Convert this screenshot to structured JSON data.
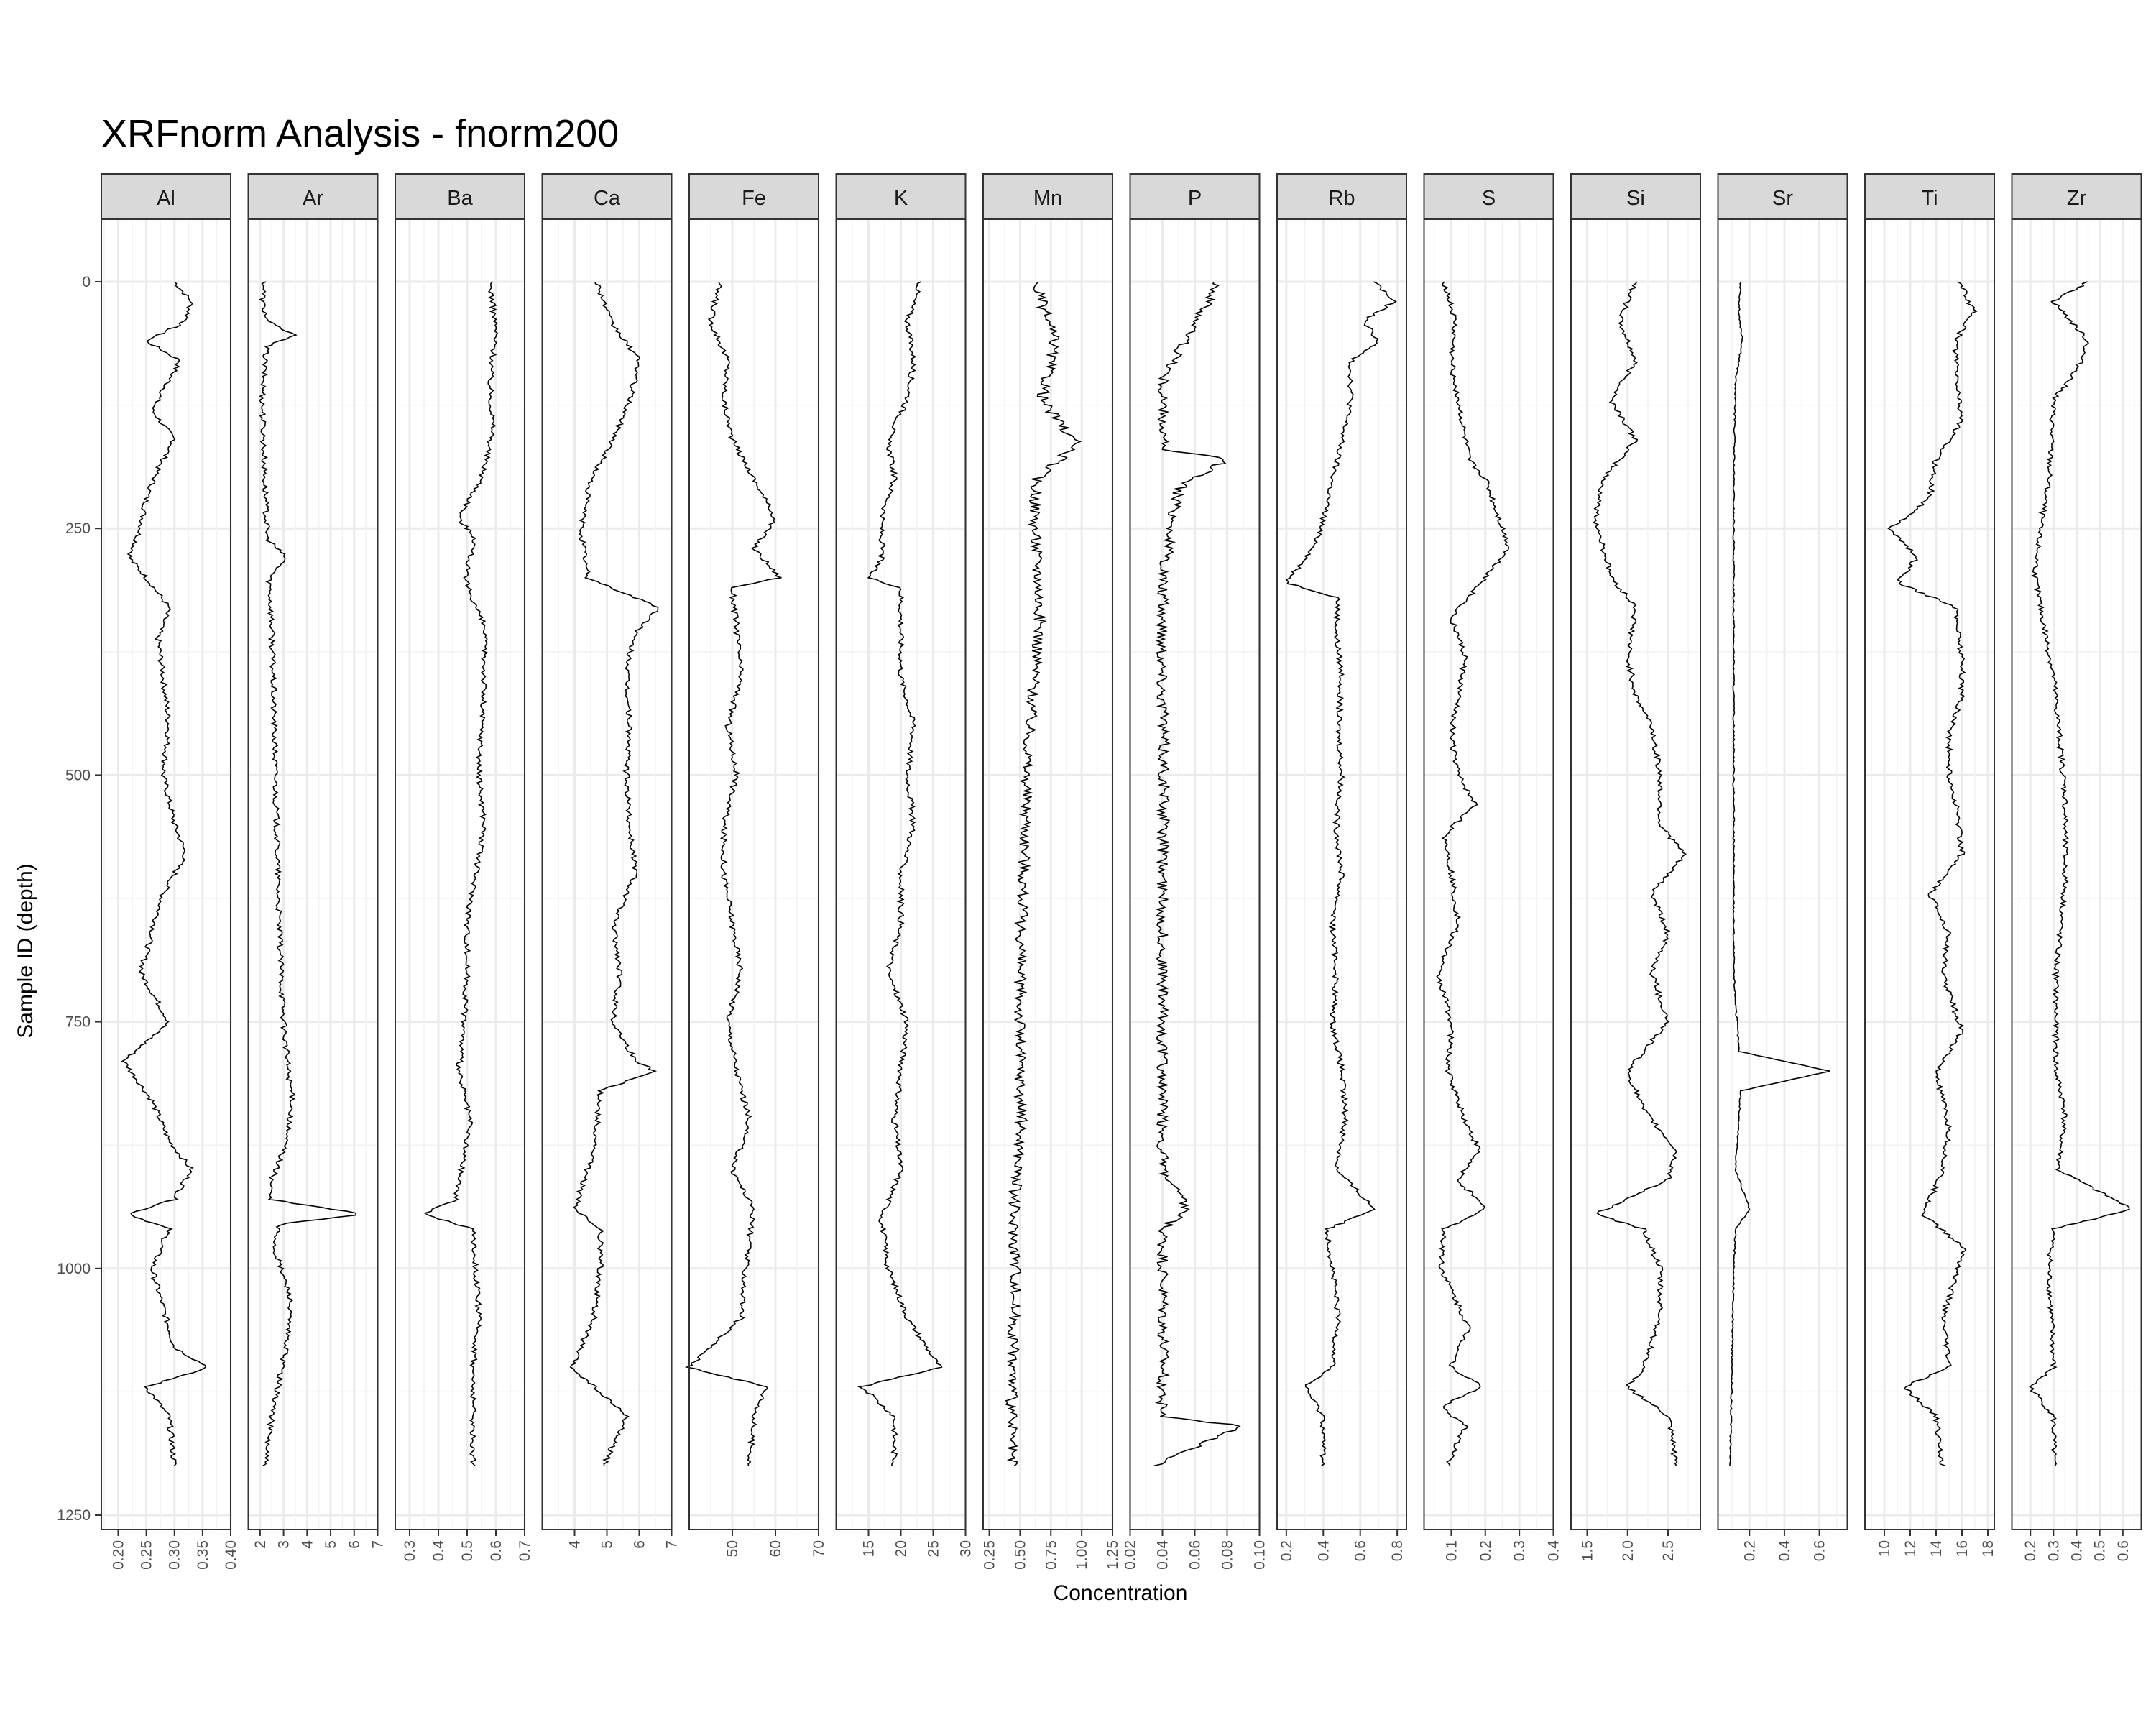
{
  "chart_data": {
    "type": "line",
    "title": "XRFnorm Analysis - fnorm200",
    "xlabel": "Concentration",
    "ylabel": "Sample ID (depth)",
    "y_reversed": true,
    "ylim": [
      1250,
      0
    ],
    "yticks": [
      0,
      250,
      500,
      750,
      1000,
      1250
    ],
    "ytick_labels": [
      "0",
      "250",
      "500",
      "750",
      "1000",
      "1250"
    ],
    "grid": true,
    "theme": "bw",
    "line_color": "#000000",
    "strip_fill": "#d9d9d9",
    "panels": [
      {
        "name": "Al",
        "xlim": [
          0.17,
          0.4
        ],
        "ticks": [
          0.2,
          0.25,
          0.3,
          0.35,
          0.4
        ],
        "tick_labels": [
          "0.20",
          "0.25",
          "0.30",
          "0.35",
          "0.40"
        ],
        "series": {
          "depth": [
            0,
            20,
            40,
            60,
            80,
            100,
            130,
            160,
            190,
            220,
            250,
            280,
            300,
            330,
            360,
            400,
            450,
            500,
            550,
            580,
            620,
            660,
            700,
            750,
            790,
            830,
            870,
            900,
            930,
            945,
            960,
            1000,
            1040,
            1080,
            1100,
            1120,
            1150,
            1200
          ],
          "values": [
            0.3,
            0.33,
            0.32,
            0.25,
            0.31,
            0.29,
            0.26,
            0.3,
            0.27,
            0.25,
            0.24,
            0.22,
            0.25,
            0.29,
            0.27,
            0.28,
            0.29,
            0.28,
            0.3,
            0.32,
            0.28,
            0.26,
            0.24,
            0.29,
            0.21,
            0.26,
            0.29,
            0.33,
            0.3,
            0.22,
            0.29,
            0.26,
            0.28,
            0.3,
            0.36,
            0.25,
            0.29,
            0.3
          ]
        }
      },
      {
        "name": "Ar",
        "xlim": [
          1.5,
          7.0
        ],
        "ticks": [
          2,
          3,
          4,
          5,
          6,
          7
        ],
        "tick_labels": [
          "2",
          "3",
          "4",
          "5",
          "6",
          "7"
        ],
        "series": {
          "depth": [
            0,
            20,
            40,
            55,
            65,
            80,
            120,
            200,
            260,
            280,
            300,
            350,
            450,
            550,
            650,
            750,
            800,
            830,
            880,
            910,
            930,
            945,
            955,
            980,
            1030,
            1080,
            1150,
            1200
          ],
          "values": [
            2.2,
            2.1,
            2.3,
            3.5,
            2.3,
            2.2,
            2.1,
            2.2,
            2.3,
            3.1,
            2.4,
            2.5,
            2.6,
            2.7,
            2.8,
            3.0,
            3.2,
            3.4,
            3.0,
            2.5,
            2.4,
            6.4,
            2.8,
            2.6,
            3.3,
            3.1,
            2.5,
            2.2
          ]
        }
      },
      {
        "name": "Ba",
        "xlim": [
          0.25,
          0.7
        ],
        "ticks": [
          0.3,
          0.4,
          0.5,
          0.6,
          0.7
        ],
        "tick_labels": [
          "0.3",
          "0.4",
          "0.5",
          "0.6",
          "0.7"
        ],
        "series": {
          "depth": [
            0,
            50,
            100,
            150,
            200,
            240,
            260,
            300,
            350,
            400,
            450,
            500,
            550,
            600,
            650,
            700,
            750,
            800,
            850,
            900,
            930,
            945,
            960,
            1000,
            1050,
            1100,
            1150,
            1200
          ],
          "values": [
            0.58,
            0.6,
            0.58,
            0.59,
            0.55,
            0.47,
            0.53,
            0.49,
            0.56,
            0.56,
            0.55,
            0.54,
            0.56,
            0.53,
            0.5,
            0.5,
            0.49,
            0.47,
            0.51,
            0.48,
            0.46,
            0.35,
            0.52,
            0.53,
            0.54,
            0.52,
            0.52,
            0.52
          ]
        }
      },
      {
        "name": "Ca",
        "xlim": [
          3.0,
          7.0
        ],
        "ticks": [
          4,
          5,
          6,
          7
        ],
        "tick_labels": [
          "4",
          "5",
          "6",
          "7"
        ],
        "series": {
          "depth": [
            0,
            40,
            80,
            120,
            160,
            200,
            250,
            300,
            330,
            360,
            400,
            450,
            500,
            550,
            600,
            650,
            700,
            750,
            790,
            800,
            820,
            880,
            940,
            960,
            1000,
            1050,
            1100,
            1120,
            1150,
            1200
          ],
          "values": [
            4.7,
            5.1,
            6.0,
            5.7,
            5.2,
            4.5,
            4.2,
            4.4,
            6.6,
            5.8,
            5.6,
            5.7,
            5.6,
            5.7,
            5.9,
            5.2,
            5.4,
            5.2,
            5.9,
            6.5,
            4.8,
            4.6,
            4.0,
            4.8,
            4.8,
            4.6,
            3.9,
            4.6,
            5.6,
            4.9
          ]
        }
      },
      {
        "name": "Fe",
        "xlim": [
          40,
          70
        ],
        "ticks": [
          50,
          60,
          70
        ],
        "tick_labels": [
          "50",
          "60",
          "70"
        ],
        "series": {
          "depth": [
            0,
            40,
            80,
            120,
            160,
            200,
            240,
            270,
            300,
            310,
            350,
            400,
            450,
            500,
            550,
            600,
            650,
            700,
            750,
            800,
            850,
            900,
            940,
            1000,
            1050,
            1100,
            1120,
            1150,
            1200
          ],
          "values": [
            47,
            45,
            49,
            48,
            50,
            55,
            60,
            55,
            61,
            50,
            51,
            52,
            49,
            51,
            48,
            48,
            50,
            52,
            49,
            51,
            54,
            50,
            55,
            53,
            52,
            40,
            58,
            55,
            54
          ]
        }
      },
      {
        "name": "K",
        "xlim": [
          10,
          30
        ],
        "ticks": [
          15,
          20,
          25,
          30
        ],
        "tick_labels": [
          "15",
          "20",
          "25",
          "30"
        ],
        "series": {
          "depth": [
            0,
            40,
            80,
            120,
            160,
            200,
            240,
            280,
            300,
            310,
            350,
            400,
            450,
            500,
            550,
            600,
            650,
            700,
            750,
            800,
            850,
            900,
            950,
            1000,
            1050,
            1100,
            1120,
            1150,
            1200
          ],
          "values": [
            23,
            21,
            22,
            21,
            18,
            19,
            17,
            17,
            15,
            20,
            20,
            20,
            22,
            21,
            22,
            20,
            20,
            18,
            21,
            20,
            19,
            20,
            17,
            18,
            21,
            26,
            14,
            19,
            19
          ]
        }
      },
      {
        "name": "Mn",
        "xlim": [
          0.2,
          1.25
        ],
        "ticks": [
          0.25,
          0.5,
          0.75,
          1.0,
          1.25
        ],
        "tick_labels": [
          "0.25",
          "0.50",
          "0.75",
          "1.00",
          "1.25"
        ],
        "series": {
          "depth": [
            0,
            60,
            120,
            165,
            200,
            250,
            300,
            350,
            400,
            450,
            500,
            550,
            600,
            650,
            700,
            750,
            800,
            850,
            900,
            950,
            1000,
            1050,
            1100,
            1150,
            1200
          ],
          "values": [
            0.62,
            0.78,
            0.68,
            0.96,
            0.63,
            0.62,
            0.65,
            0.66,
            0.62,
            0.58,
            0.55,
            0.55,
            0.53,
            0.51,
            0.5,
            0.5,
            0.5,
            0.51,
            0.48,
            0.44,
            0.47,
            0.45,
            0.44,
            0.43,
            0.43
          ]
        }
      },
      {
        "name": "P",
        "xlim": [
          0.02,
          0.1
        ],
        "ticks": [
          0.02,
          0.04,
          0.06,
          0.08,
          0.1
        ],
        "tick_labels": [
          "0.02",
          "0.04",
          "0.06",
          "0.08",
          "0.10"
        ],
        "series": {
          "depth": [
            0,
            100,
            170,
            180,
            200,
            210,
            300,
            400,
            500,
            600,
            700,
            800,
            900,
            940,
            960,
            1050,
            1100,
            1150,
            1160,
            1200
          ],
          "values": [
            0.075,
            0.04,
            0.04,
            0.08,
            0.06,
            0.05,
            0.04,
            0.04,
            0.041,
            0.04,
            0.04,
            0.04,
            0.04,
            0.055,
            0.04,
            0.04,
            0.04,
            0.04,
            0.09,
            0.035
          ]
        }
      },
      {
        "name": "Rb",
        "xlim": [
          0.15,
          0.85
        ],
        "ticks": [
          0.2,
          0.4,
          0.6,
          0.8
        ],
        "tick_labels": [
          "0.2",
          "0.4",
          "0.6",
          "0.8"
        ],
        "series": {
          "depth": [
            0,
            20,
            40,
            60,
            80,
            120,
            160,
            200,
            240,
            270,
            305,
            320,
            360,
            400,
            450,
            500,
            550,
            600,
            650,
            700,
            750,
            800,
            850,
            900,
            940,
            960,
            1000,
            1050,
            1100,
            1120,
            1150,
            1200
          ],
          "values": [
            0.68,
            0.78,
            0.62,
            0.7,
            0.55,
            0.55,
            0.5,
            0.45,
            0.4,
            0.35,
            0.2,
            0.48,
            0.47,
            0.5,
            0.48,
            0.5,
            0.47,
            0.5,
            0.45,
            0.47,
            0.45,
            0.5,
            0.52,
            0.47,
            0.68,
            0.42,
            0.45,
            0.48,
            0.45,
            0.3,
            0.4,
            0.4
          ]
        }
      },
      {
        "name": "S",
        "xlim": [
          0.02,
          0.4
        ],
        "ticks": [
          0.1,
          0.2,
          0.3,
          0.4
        ],
        "tick_labels": [
          "0.1",
          "0.2",
          "0.3",
          "0.4"
        ],
        "series": {
          "depth": [
            0,
            40,
            80,
            120,
            180,
            200,
            250,
            270,
            300,
            340,
            380,
            420,
            460,
            500,
            530,
            560,
            600,
            650,
            700,
            750,
            800,
            850,
            880,
            910,
            940,
            960,
            1000,
            1060,
            1100,
            1120,
            1140,
            1160,
            1200
          ],
          "values": [
            0.08,
            0.11,
            0.1,
            0.12,
            0.15,
            0.2,
            0.25,
            0.27,
            0.2,
            0.1,
            0.14,
            0.12,
            0.1,
            0.12,
            0.17,
            0.08,
            0.1,
            0.12,
            0.06,
            0.1,
            0.09,
            0.14,
            0.18,
            0.12,
            0.2,
            0.08,
            0.07,
            0.15,
            0.1,
            0.19,
            0.07,
            0.14,
            0.09
          ]
        }
      },
      {
        "name": "Si",
        "xlim": [
          1.3,
          2.9
        ],
        "ticks": [
          1.5,
          2.0,
          2.5
        ],
        "tick_labels": [
          "1.5",
          "2.0",
          "2.5"
        ],
        "series": {
          "depth": [
            0,
            40,
            80,
            120,
            160,
            200,
            240,
            300,
            330,
            380,
            420,
            450,
            500,
            550,
            580,
            620,
            660,
            700,
            750,
            800,
            840,
            880,
            910,
            945,
            960,
            1000,
            1050,
            1100,
            1120,
            1150,
            1200
          ],
          "values": [
            2.1,
            1.9,
            2.1,
            1.8,
            2.1,
            1.7,
            1.6,
            1.8,
            2.1,
            2.0,
            2.1,
            2.3,
            2.4,
            2.4,
            2.7,
            2.3,
            2.5,
            2.3,
            2.5,
            2.0,
            2.2,
            2.6,
            2.5,
            1.6,
            2.2,
            2.4,
            2.4,
            2.2,
            2.0,
            2.5,
            2.6
          ]
        }
      },
      {
        "name": "Sr",
        "xlim": [
          0.02,
          0.76
        ],
        "ticks": [
          0.2,
          0.4,
          0.6
        ],
        "tick_labels": [
          "0.2",
          "0.4",
          "0.6"
        ],
        "series": {
          "depth": [
            0,
            30,
            60,
            100,
            200,
            300,
            400,
            500,
            600,
            700,
            780,
            800,
            820,
            900,
            940,
            960,
            1000,
            1100,
            1200
          ],
          "values": [
            0.15,
            0.14,
            0.16,
            0.12,
            0.11,
            0.11,
            0.11,
            0.11,
            0.11,
            0.11,
            0.14,
            0.66,
            0.15,
            0.12,
            0.2,
            0.12,
            0.11,
            0.1,
            0.09
          ]
        }
      },
      {
        "name": "Ti",
        "xlim": [
          8.5,
          18.5
        ],
        "ticks": [
          10,
          12,
          14,
          16,
          18
        ],
        "tick_labels": [
          "10",
          "12",
          "14",
          "16",
          "18"
        ],
        "series": {
          "depth": [
            0,
            30,
            60,
            100,
            140,
            180,
            220,
            250,
            280,
            305,
            330,
            380,
            420,
            460,
            500,
            540,
            580,
            620,
            660,
            700,
            760,
            800,
            860,
            900,
            945,
            980,
            1050,
            1100,
            1120,
            1150,
            1200
          ],
          "values": [
            15.8,
            16.9,
            15.5,
            15.6,
            16.0,
            14.0,
            13.5,
            10.5,
            12.5,
            11.0,
            15.5,
            16.0,
            16.0,
            15.0,
            15.0,
            15.7,
            16.0,
            13.5,
            15.0,
            14.5,
            16.0,
            14.0,
            15.0,
            14.5,
            13.0,
            16.2,
            14.5,
            15.0,
            11.5,
            14.0,
            14.5
          ]
        }
      },
      {
        "name": "Zr",
        "xlim": [
          0.12,
          0.68
        ],
        "ticks": [
          0.2,
          0.3,
          0.4,
          0.5,
          0.6
        ],
        "tick_labels": [
          "0.2",
          "0.3",
          "0.4",
          "0.5",
          "0.6"
        ],
        "series": {
          "depth": [
            0,
            20,
            60,
            90,
            120,
            200,
            250,
            300,
            400,
            520,
            610,
            700,
            800,
            840,
            900,
            940,
            960,
            1000,
            1100,
            1120,
            1150,
            1200
          ],
          "values": [
            0.45,
            0.3,
            0.45,
            0.4,
            0.3,
            0.28,
            0.24,
            0.22,
            0.3,
            0.35,
            0.35,
            0.31,
            0.31,
            0.35,
            0.32,
            0.64,
            0.3,
            0.28,
            0.3,
            0.2,
            0.3,
            0.3
          ]
        }
      }
    ]
  }
}
